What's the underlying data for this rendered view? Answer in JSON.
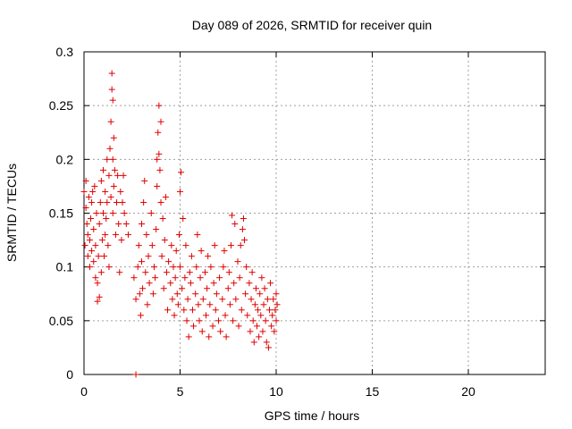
{
  "chart_data": {
    "type": "scatter",
    "title": "Day 089 of 2026, SRMTID for receiver quin",
    "xlabel": "GPS time / hours",
    "ylabel": "SRMTID / TECUs",
    "xlim": [
      0,
      24
    ],
    "ylim": [
      0,
      0.3
    ],
    "xticks": [
      0,
      5,
      10,
      15,
      20
    ],
    "yticks": [
      0,
      0.05,
      0.1,
      0.15,
      0.2,
      0.25,
      0.3
    ],
    "xtick_labels": [
      "0",
      "5",
      "10",
      "15",
      "20"
    ],
    "ytick_labels": [
      "0",
      "0.05",
      "0.1",
      "0.15",
      "0.2",
      "0.25",
      "0.3"
    ],
    "grid": true,
    "marker": "+",
    "color": "#e00000",
    "series": [
      {
        "name": "SRMTID",
        "points": [
          [
            0.0,
            0.17
          ],
          [
            0.05,
            0.12
          ],
          [
            0.1,
            0.155
          ],
          [
            0.1,
            0.18
          ],
          [
            0.15,
            0.14
          ],
          [
            0.2,
            0.11
          ],
          [
            0.2,
            0.13
          ],
          [
            0.25,
            0.165
          ],
          [
            0.3,
            0.1
          ],
          [
            0.3,
            0.125
          ],
          [
            0.35,
            0.145
          ],
          [
            0.4,
            0.16
          ],
          [
            0.4,
            0.115
          ],
          [
            0.45,
            0.17
          ],
          [
            0.5,
            0.105
          ],
          [
            0.5,
            0.135
          ],
          [
            0.55,
            0.175
          ],
          [
            0.6,
            0.09
          ],
          [
            0.6,
            0.12
          ],
          [
            0.65,
            0.15
          ],
          [
            0.7,
            0.068
          ],
          [
            0.7,
            0.085
          ],
          [
            0.75,
            0.11
          ],
          [
            0.8,
            0.072
          ],
          [
            0.8,
            0.14
          ],
          [
            0.85,
            0.16
          ],
          [
            0.9,
            0.18
          ],
          [
            0.9,
            0.095
          ],
          [
            0.95,
            0.125
          ],
          [
            1.0,
            0.19
          ],
          [
            1.0,
            0.15
          ],
          [
            1.05,
            0.11
          ],
          [
            1.1,
            0.17
          ],
          [
            1.1,
            0.13
          ],
          [
            1.15,
            0.145
          ],
          [
            1.2,
            0.2
          ],
          [
            1.2,
            0.16
          ],
          [
            1.25,
            0.12
          ],
          [
            1.3,
            0.185
          ],
          [
            1.3,
            0.1
          ],
          [
            1.35,
            0.21
          ],
          [
            1.4,
            0.235
          ],
          [
            1.4,
            0.165
          ],
          [
            1.45,
            0.265
          ],
          [
            1.45,
            0.28
          ],
          [
            1.5,
            0.255
          ],
          [
            1.5,
            0.2
          ],
          [
            1.5,
            0.15
          ],
          [
            1.55,
            0.22
          ],
          [
            1.55,
            0.175
          ],
          [
            1.6,
            0.19
          ],
          [
            1.65,
            0.13
          ],
          [
            1.7,
            0.16
          ],
          [
            1.75,
            0.185
          ],
          [
            1.8,
            0.14
          ],
          [
            1.85,
            0.095
          ],
          [
            1.9,
            0.17
          ],
          [
            1.95,
            0.125
          ],
          [
            2.0,
            0.16
          ],
          [
            2.05,
            0.185
          ],
          [
            2.1,
            0.15
          ],
          [
            2.2,
            0.14
          ],
          [
            2.3,
            0.13
          ],
          [
            2.6,
            0.09
          ],
          [
            2.7,
            0.07
          ],
          [
            2.8,
            0.1
          ],
          [
            2.85,
            0.12
          ],
          [
            2.9,
            0.075
          ],
          [
            2.95,
            0.055
          ],
          [
            3.0,
            0.14
          ],
          [
            3.0,
            0.105
          ],
          [
            3.05,
            0.08
          ],
          [
            3.1,
            0.16
          ],
          [
            3.15,
            0.18
          ],
          [
            3.2,
            0.095
          ],
          [
            3.25,
            0.13
          ],
          [
            3.3,
            0.065
          ],
          [
            3.35,
            0.11
          ],
          [
            3.4,
            0.085
          ],
          [
            3.5,
            0.15
          ],
          [
            3.55,
            0.12
          ],
          [
            3.6,
            0.075
          ],
          [
            3.65,
            0.1
          ],
          [
            3.7,
            0.09
          ],
          [
            3.75,
            0.135
          ],
          [
            3.8,
            0.2
          ],
          [
            3.8,
            0.175
          ],
          [
            3.85,
            0.225
          ],
          [
            3.9,
            0.25
          ],
          [
            3.9,
            0.205
          ],
          [
            3.95,
            0.19
          ],
          [
            4.0,
            0.235
          ],
          [
            4.0,
            0.16
          ],
          [
            4.05,
            0.11
          ],
          [
            4.1,
            0.145
          ],
          [
            4.15,
            0.08
          ],
          [
            4.2,
            0.125
          ],
          [
            4.25,
            0.165
          ],
          [
            4.3,
            0.095
          ],
          [
            4.35,
            0.06
          ],
          [
            4.4,
            0.105
          ],
          [
            4.5,
            0.085
          ],
          [
            4.55,
            0.12
          ],
          [
            4.6,
            0.07
          ],
          [
            4.65,
            0.1
          ],
          [
            4.7,
            0.055
          ],
          [
            4.75,
            0.09
          ],
          [
            4.8,
            0.115
          ],
          [
            4.85,
            0.075
          ],
          [
            4.9,
            0.065
          ],
          [
            4.95,
            0.13
          ],
          [
            5.0,
            0.17
          ],
          [
            5.0,
            0.1
          ],
          [
            5.05,
            0.188
          ],
          [
            5.1,
            0.08
          ],
          [
            5.15,
            0.145
          ],
          [
            5.2,
            0.06
          ],
          [
            5.25,
            0.09
          ],
          [
            5.3,
            0.12
          ],
          [
            5.35,
            0.05
          ],
          [
            5.4,
            0.07
          ],
          [
            5.45,
            0.035
          ],
          [
            5.5,
            0.095
          ],
          [
            5.55,
            0.085
          ],
          [
            5.6,
            0.11
          ],
          [
            5.65,
            0.06
          ],
          [
            5.7,
            0.045
          ],
          [
            5.8,
            0.075
          ],
          [
            5.85,
            0.1
          ],
          [
            5.9,
            0.13
          ],
          [
            5.95,
            0.065
          ],
          [
            6.0,
            0.05
          ],
          [
            6.05,
            0.09
          ],
          [
            6.1,
            0.115
          ],
          [
            6.15,
            0.04
          ],
          [
            6.2,
            0.07
          ],
          [
            6.3,
            0.095
          ],
          [
            6.35,
            0.055
          ],
          [
            6.4,
            0.08
          ],
          [
            6.45,
            0.11
          ],
          [
            6.5,
            0.035
          ],
          [
            6.55,
            0.065
          ],
          [
            6.6,
            0.1
          ],
          [
            6.7,
            0.045
          ],
          [
            6.75,
            0.085
          ],
          [
            6.8,
            0.12
          ],
          [
            6.85,
            0.06
          ],
          [
            6.9,
            0.075
          ],
          [
            7.0,
            0.05
          ],
          [
            7.05,
            0.09
          ],
          [
            7.1,
            0.04
          ],
          [
            7.2,
            0.07
          ],
          [
            7.25,
            0.1
          ],
          [
            7.3,
            0.115
          ],
          [
            7.35,
            0.055
          ],
          [
            7.4,
            0.035
          ],
          [
            7.5,
            0.08
          ],
          [
            7.55,
            0.095
          ],
          [
            7.6,
            0.065
          ],
          [
            7.65,
            0.12
          ],
          [
            7.7,
            0.148
          ],
          [
            7.75,
            0.05
          ],
          [
            7.8,
            0.085
          ],
          [
            7.85,
            0.14
          ],
          [
            7.9,
            0.07
          ],
          [
            8.0,
            0.105
          ],
          [
            8.05,
            0.045
          ],
          [
            8.1,
            0.09
          ],
          [
            8.15,
            0.12
          ],
          [
            8.2,
            0.06
          ],
          [
            8.25,
            0.135
          ],
          [
            8.3,
            0.145
          ],
          [
            8.35,
            0.125
          ],
          [
            8.4,
            0.075
          ],
          [
            8.45,
            0.1
          ],
          [
            8.5,
            0.055
          ],
          [
            8.6,
            0.085
          ],
          [
            8.65,
            0.04
          ],
          [
            8.7,
            0.07
          ],
          [
            8.75,
            0.095
          ],
          [
            8.8,
            0.05
          ],
          [
            8.85,
            0.03
          ],
          [
            8.9,
            0.065
          ],
          [
            8.95,
            0.08
          ],
          [
            9.0,
            0.045
          ],
          [
            9.05,
            0.06
          ],
          [
            9.1,
            0.035
          ],
          [
            9.15,
            0.075
          ],
          [
            9.2,
            0.055
          ],
          [
            9.25,
            0.09
          ],
          [
            9.3,
            0.04
          ],
          [
            9.35,
            0.065
          ],
          [
            9.4,
            0.08
          ],
          [
            9.45,
            0.05
          ],
          [
            9.5,
            0.03
          ],
          [
            9.55,
            0.07
          ],
          [
            9.6,
            0.025
          ],
          [
            9.65,
            0.06
          ],
          [
            9.7,
            0.085
          ],
          [
            9.75,
            0.045
          ],
          [
            9.8,
            0.055
          ],
          [
            9.85,
            0.07
          ],
          [
            9.9,
            0.04
          ],
          [
            9.95,
            0.06
          ],
          [
            10.0,
            0.05
          ],
          [
            10.0,
            0.075
          ],
          [
            10.05,
            0.065
          ],
          [
            2.7,
            0.0
          ]
        ]
      }
    ]
  }
}
